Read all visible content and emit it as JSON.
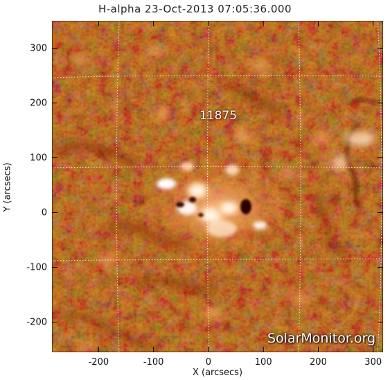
{
  "title": "H-alpha 23-Oct-2013 07:05:36.000",
  "region_label": "11875",
  "watermark": "SolarMonitor.org",
  "chart_data": {
    "type": "heatmap",
    "title": "H-alpha 23-Oct-2013 07:05:36.000",
    "xlabel": "X (arcsecs)",
    "ylabel": "Y (arcsecs)",
    "xlim": [
      -285,
      318
    ],
    "ylim": [
      -255,
      350
    ],
    "xticks": [
      "-200",
      "-100",
      "0",
      "100",
      "200",
      "300"
    ],
    "yticks": [
      "300",
      "200",
      "100",
      "0",
      "-100",
      "-200"
    ],
    "xtick_values": [
      -200,
      -100,
      0,
      100,
      200,
      300
    ],
    "ytick_values": [
      300,
      200,
      100,
      0,
      -100,
      -200
    ],
    "grid": true,
    "colormap": [
      "#7a1e00",
      "#b73a00",
      "#d9580c",
      "#ee8a3a",
      "#ffd9a8",
      "#ffffff"
    ],
    "annotations": [
      {
        "text": "11875",
        "x": 20,
        "y": 175
      }
    ]
  }
}
